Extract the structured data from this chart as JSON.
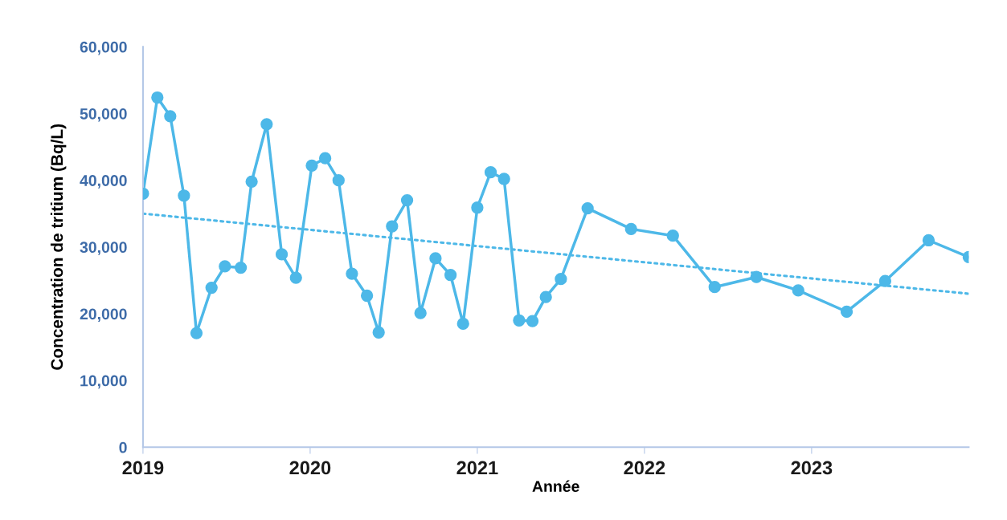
{
  "chart_data": {
    "type": "line",
    "xlabel": "Année",
    "ylabel": "Concentration de tritium (Bq/L)",
    "xlim": [
      2019,
      2023.94
    ],
    "xticks": [
      2019,
      2020,
      2021,
      2022,
      2023
    ],
    "ylim": [
      0,
      60000
    ],
    "yticks": [
      0,
      {
        "value": 10000,
        "label": "10,000"
      },
      {
        "value": 20000,
        "label": "20,000"
      },
      {
        "value": 30000,
        "label": "30,000"
      },
      {
        "value": 40000,
        "label": "40,000"
      },
      {
        "value": 50000,
        "label": "50,000"
      },
      {
        "value": 60000,
        "label": "60,000"
      }
    ],
    "grid": false,
    "legend": false,
    "series": [
      {
        "color": "#4db8e8",
        "marker": "circle",
        "line_style": "solid",
        "x": [
          2019.0,
          2019.086,
          2019.163,
          2019.245,
          2019.32,
          2019.41,
          2019.49,
          2019.585,
          2019.65,
          2019.74,
          2019.83,
          2019.915,
          2020.01,
          2020.09,
          2020.17,
          2020.25,
          2020.34,
          2020.41,
          2020.49,
          2020.58,
          2020.66,
          2020.75,
          2020.84,
          2020.915,
          2021.0,
          2021.08,
          2021.16,
          2021.25,
          2021.33,
          2021.41,
          2021.5,
          2021.66,
          2021.92,
          2022.17,
          2022.42,
          2022.67,
          2022.92,
          2023.21,
          2023.44,
          2023.7,
          2023.94
        ],
        "values": [
          38000,
          52400,
          49600,
          37700,
          17100,
          23900,
          27100,
          26900,
          39800,
          48400,
          28900,
          25400,
          42200,
          43300,
          40000,
          26000,
          22700,
          17200,
          33100,
          37000,
          20100,
          28300,
          25800,
          18500,
          35900,
          41200,
          40200,
          19000,
          18900,
          22500,
          25200,
          35800,
          32700,
          31700,
          24000,
          25500,
          23500,
          20300,
          24900,
          31000,
          28500
        ]
      },
      {
        "type": "line",
        "color": "#4db8e8",
        "marker": "none",
        "line_style": "dotted",
        "x": [
          2019.0,
          2023.94
        ],
        "values": [
          35000,
          23000
        ]
      }
    ]
  }
}
